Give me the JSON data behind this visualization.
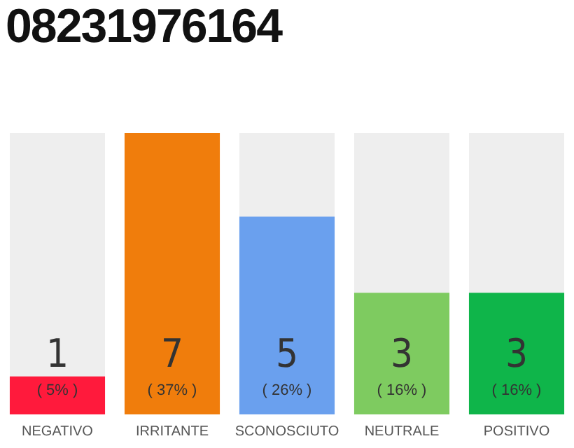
{
  "chart_data": {
    "type": "bar",
    "title": "08231976164",
    "categories": [
      "NEGATIVO",
      "IRRITANTE",
      "SCONOSCIUTO",
      "NEUTRALE",
      "POSITIVO"
    ],
    "values": [
      5,
      37,
      26,
      16,
      16
    ],
    "colors": [
      "#ff1a3c",
      "#f07d0c",
      "#6aa0ee",
      "#7ecb60",
      "#0fb54a"
    ],
    "value_labels": [
      "( 5% )",
      "( 37% )",
      "( 26% )",
      "( 16% )",
      "( 16% )"
    ],
    "annotations": [
      "1",
      "7",
      "5",
      "3",
      "3"
    ],
    "legend": false,
    "grid": false
  }
}
